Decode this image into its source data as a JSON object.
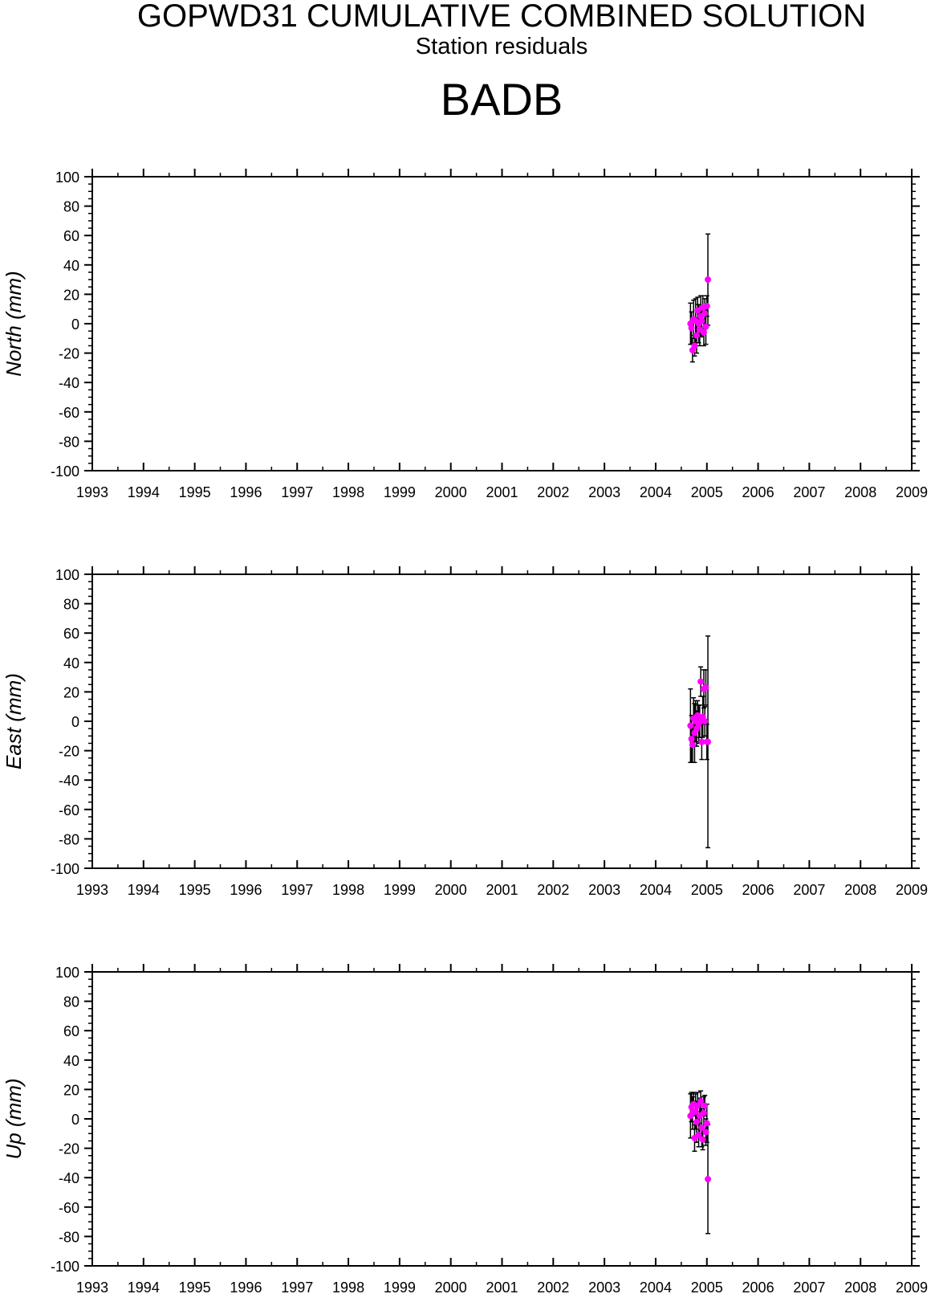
{
  "header": {
    "title": "GOPWD31 CUMULATIVE COMBINED SOLUTION",
    "subtitle": "Station residuals",
    "station": "BADB"
  },
  "colors": {
    "point": "#ff00ff",
    "errorbar": "#000000",
    "axis": "#000000"
  },
  "chart_data": [
    {
      "type": "scatter",
      "panel": "north",
      "ylabel": "North (mm)",
      "xlim": [
        1993,
        2009
      ],
      "ylim": [
        -100,
        100
      ],
      "xticks": [
        "1993",
        "1994",
        "1995",
        "1996",
        "1997",
        "1998",
        "1999",
        "2000",
        "2001",
        "2002",
        "2003",
        "2004",
        "2005",
        "2006",
        "2007",
        "2008",
        "2009"
      ],
      "yticks": [
        "100",
        "80",
        "60",
        "40",
        "20",
        "0",
        "-20",
        "-40",
        "-60",
        "-80",
        "-100"
      ],
      "grid": false,
      "points": [
        {
          "x": 2004.68,
          "y": 0,
          "err": 14
        },
        {
          "x": 2004.7,
          "y": -3,
          "err": 11
        },
        {
          "x": 2004.72,
          "y": -18,
          "err": 8
        },
        {
          "x": 2004.74,
          "y": 3,
          "err": 13
        },
        {
          "x": 2004.76,
          "y": -15,
          "err": 7
        },
        {
          "x": 2004.78,
          "y": 2,
          "err": 15
        },
        {
          "x": 2004.8,
          "y": -8,
          "err": 12
        },
        {
          "x": 2004.82,
          "y": 9,
          "err": 9
        },
        {
          "x": 2004.84,
          "y": 0,
          "err": 13
        },
        {
          "x": 2004.86,
          "y": -4,
          "err": 11
        },
        {
          "x": 2004.88,
          "y": 5,
          "err": 14
        },
        {
          "x": 2004.9,
          "y": 2,
          "err": 10
        },
        {
          "x": 2004.92,
          "y": 11,
          "err": 8
        },
        {
          "x": 2004.94,
          "y": -6,
          "err": 9
        },
        {
          "x": 2004.96,
          "y": 7,
          "err": 10
        },
        {
          "x": 2004.98,
          "y": -2,
          "err": 12
        },
        {
          "x": 2005.0,
          "y": 12,
          "err": 7
        },
        {
          "x": 2005.02,
          "y": 30,
          "err": 31
        }
      ]
    },
    {
      "type": "scatter",
      "panel": "east",
      "ylabel": "East (mm)",
      "xlim": [
        1993,
        2009
      ],
      "ylim": [
        -100,
        100
      ],
      "xticks": [
        "1993",
        "1994",
        "1995",
        "1996",
        "1997",
        "1998",
        "1999",
        "2000",
        "2001",
        "2002",
        "2003",
        "2004",
        "2005",
        "2006",
        "2007",
        "2008",
        "2009"
      ],
      "yticks": [
        "100",
        "80",
        "60",
        "40",
        "20",
        "0",
        "-20",
        "-40",
        "-60",
        "-80",
        "-100"
      ],
      "grid": false,
      "points": [
        {
          "x": 2004.68,
          "y": -3,
          "err": 25
        },
        {
          "x": 2004.7,
          "y": -12,
          "err": 16
        },
        {
          "x": 2004.72,
          "y": -16,
          "err": 12
        },
        {
          "x": 2004.74,
          "y": 2,
          "err": 14
        },
        {
          "x": 2004.76,
          "y": -8,
          "err": 20
        },
        {
          "x": 2004.78,
          "y": 0,
          "err": 14
        },
        {
          "x": 2004.8,
          "y": -5,
          "err": 12
        },
        {
          "x": 2004.82,
          "y": 4,
          "err": 10
        },
        {
          "x": 2004.84,
          "y": -2,
          "err": 13
        },
        {
          "x": 2004.86,
          "y": 0,
          "err": 11
        },
        {
          "x": 2004.88,
          "y": 27,
          "err": 10
        },
        {
          "x": 2004.9,
          "y": -14,
          "err": 12
        },
        {
          "x": 2004.92,
          "y": 3,
          "err": 14
        },
        {
          "x": 2004.94,
          "y": 22,
          "err": 13
        },
        {
          "x": 2004.96,
          "y": 0,
          "err": 10
        },
        {
          "x": 2004.98,
          "y": 23,
          "err": 12
        },
        {
          "x": 2005.0,
          "y": -14,
          "err": 12
        },
        {
          "x": 2005.02,
          "y": -14,
          "err": 72
        }
      ]
    },
    {
      "type": "scatter",
      "panel": "up",
      "ylabel": "Up (mm)",
      "xlim": [
        1993,
        2009
      ],
      "ylim": [
        -100,
        100
      ],
      "xticks": [
        "1993",
        "1994",
        "1995",
        "1996",
        "1997",
        "1998",
        "1999",
        "2000",
        "2001",
        "2002",
        "2003",
        "2004",
        "2005",
        "2006",
        "2007",
        "2008",
        "2009"
      ],
      "yticks": [
        "100",
        "80",
        "60",
        "40",
        "20",
        "0",
        "-20",
        "-40",
        "-60",
        "-80",
        "-100"
      ],
      "grid": false,
      "points": [
        {
          "x": 2004.68,
          "y": 2,
          "err": 15
        },
        {
          "x": 2004.7,
          "y": 8,
          "err": 10
        },
        {
          "x": 2004.72,
          "y": 4,
          "err": 11
        },
        {
          "x": 2004.74,
          "y": 10,
          "err": 8
        },
        {
          "x": 2004.76,
          "y": -13,
          "err": 9
        },
        {
          "x": 2004.78,
          "y": 5,
          "err": 12
        },
        {
          "x": 2004.8,
          "y": -2,
          "err": 14
        },
        {
          "x": 2004.82,
          "y": 9,
          "err": 9
        },
        {
          "x": 2004.84,
          "y": -11,
          "err": 8
        },
        {
          "x": 2004.86,
          "y": 2,
          "err": 12
        },
        {
          "x": 2004.88,
          "y": 12,
          "err": 7
        },
        {
          "x": 2004.9,
          "y": -6,
          "err": 13
        },
        {
          "x": 2004.92,
          "y": -14,
          "err": 7
        },
        {
          "x": 2004.94,
          "y": 4,
          "err": 11
        },
        {
          "x": 2004.96,
          "y": 9,
          "err": 7
        },
        {
          "x": 2004.98,
          "y": -9,
          "err": 9
        },
        {
          "x": 2005.0,
          "y": -3,
          "err": 13
        },
        {
          "x": 2005.02,
          "y": -41,
          "err": 37
        }
      ]
    }
  ]
}
